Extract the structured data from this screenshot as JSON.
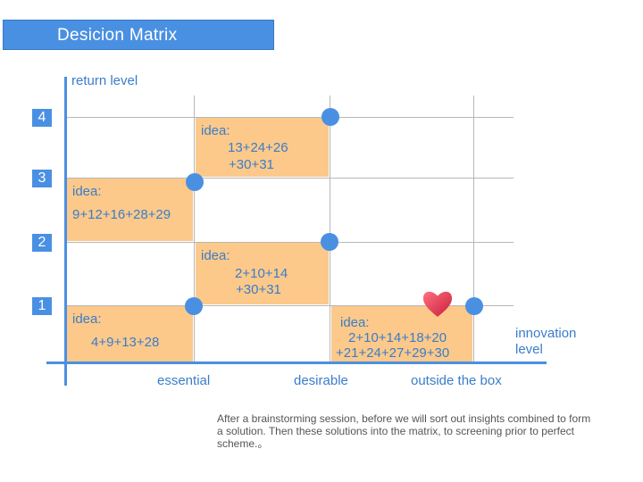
{
  "title": "Desicion  Matrix",
  "y_axis_label": "return level",
  "x_axis_label_line1": "innovation",
  "x_axis_label_line2": "level",
  "levels": [
    "4",
    "3",
    "2",
    "1"
  ],
  "x_categories": [
    "essential",
    "desirable",
    "outside the box"
  ],
  "ideas": [
    {
      "heading": "idea:",
      "line1": "13+24+26",
      "line2": "+30+31"
    },
    {
      "heading": "idea:",
      "line1": "9+12+16+28+29"
    },
    {
      "heading": "idea:",
      "line1": "2+10+14",
      "line2": "+30+31"
    },
    {
      "heading": "idea:",
      "line1": "4+9+13+28"
    },
    {
      "heading": "idea:",
      "line1": "2+10+14+18+20",
      "line2": "+21+24+27+29+30"
    }
  ],
  "note": "After a brainstorming session, before we will sort out insights combined to form a solution. Then these solutions into the matrix, to screening prior to perfect scheme.。",
  "colors": {
    "accent": "#4a90e2",
    "idea_fill": "#fcc98a",
    "text_blue": "#3a7dc9",
    "heart": "#e8384f"
  }
}
